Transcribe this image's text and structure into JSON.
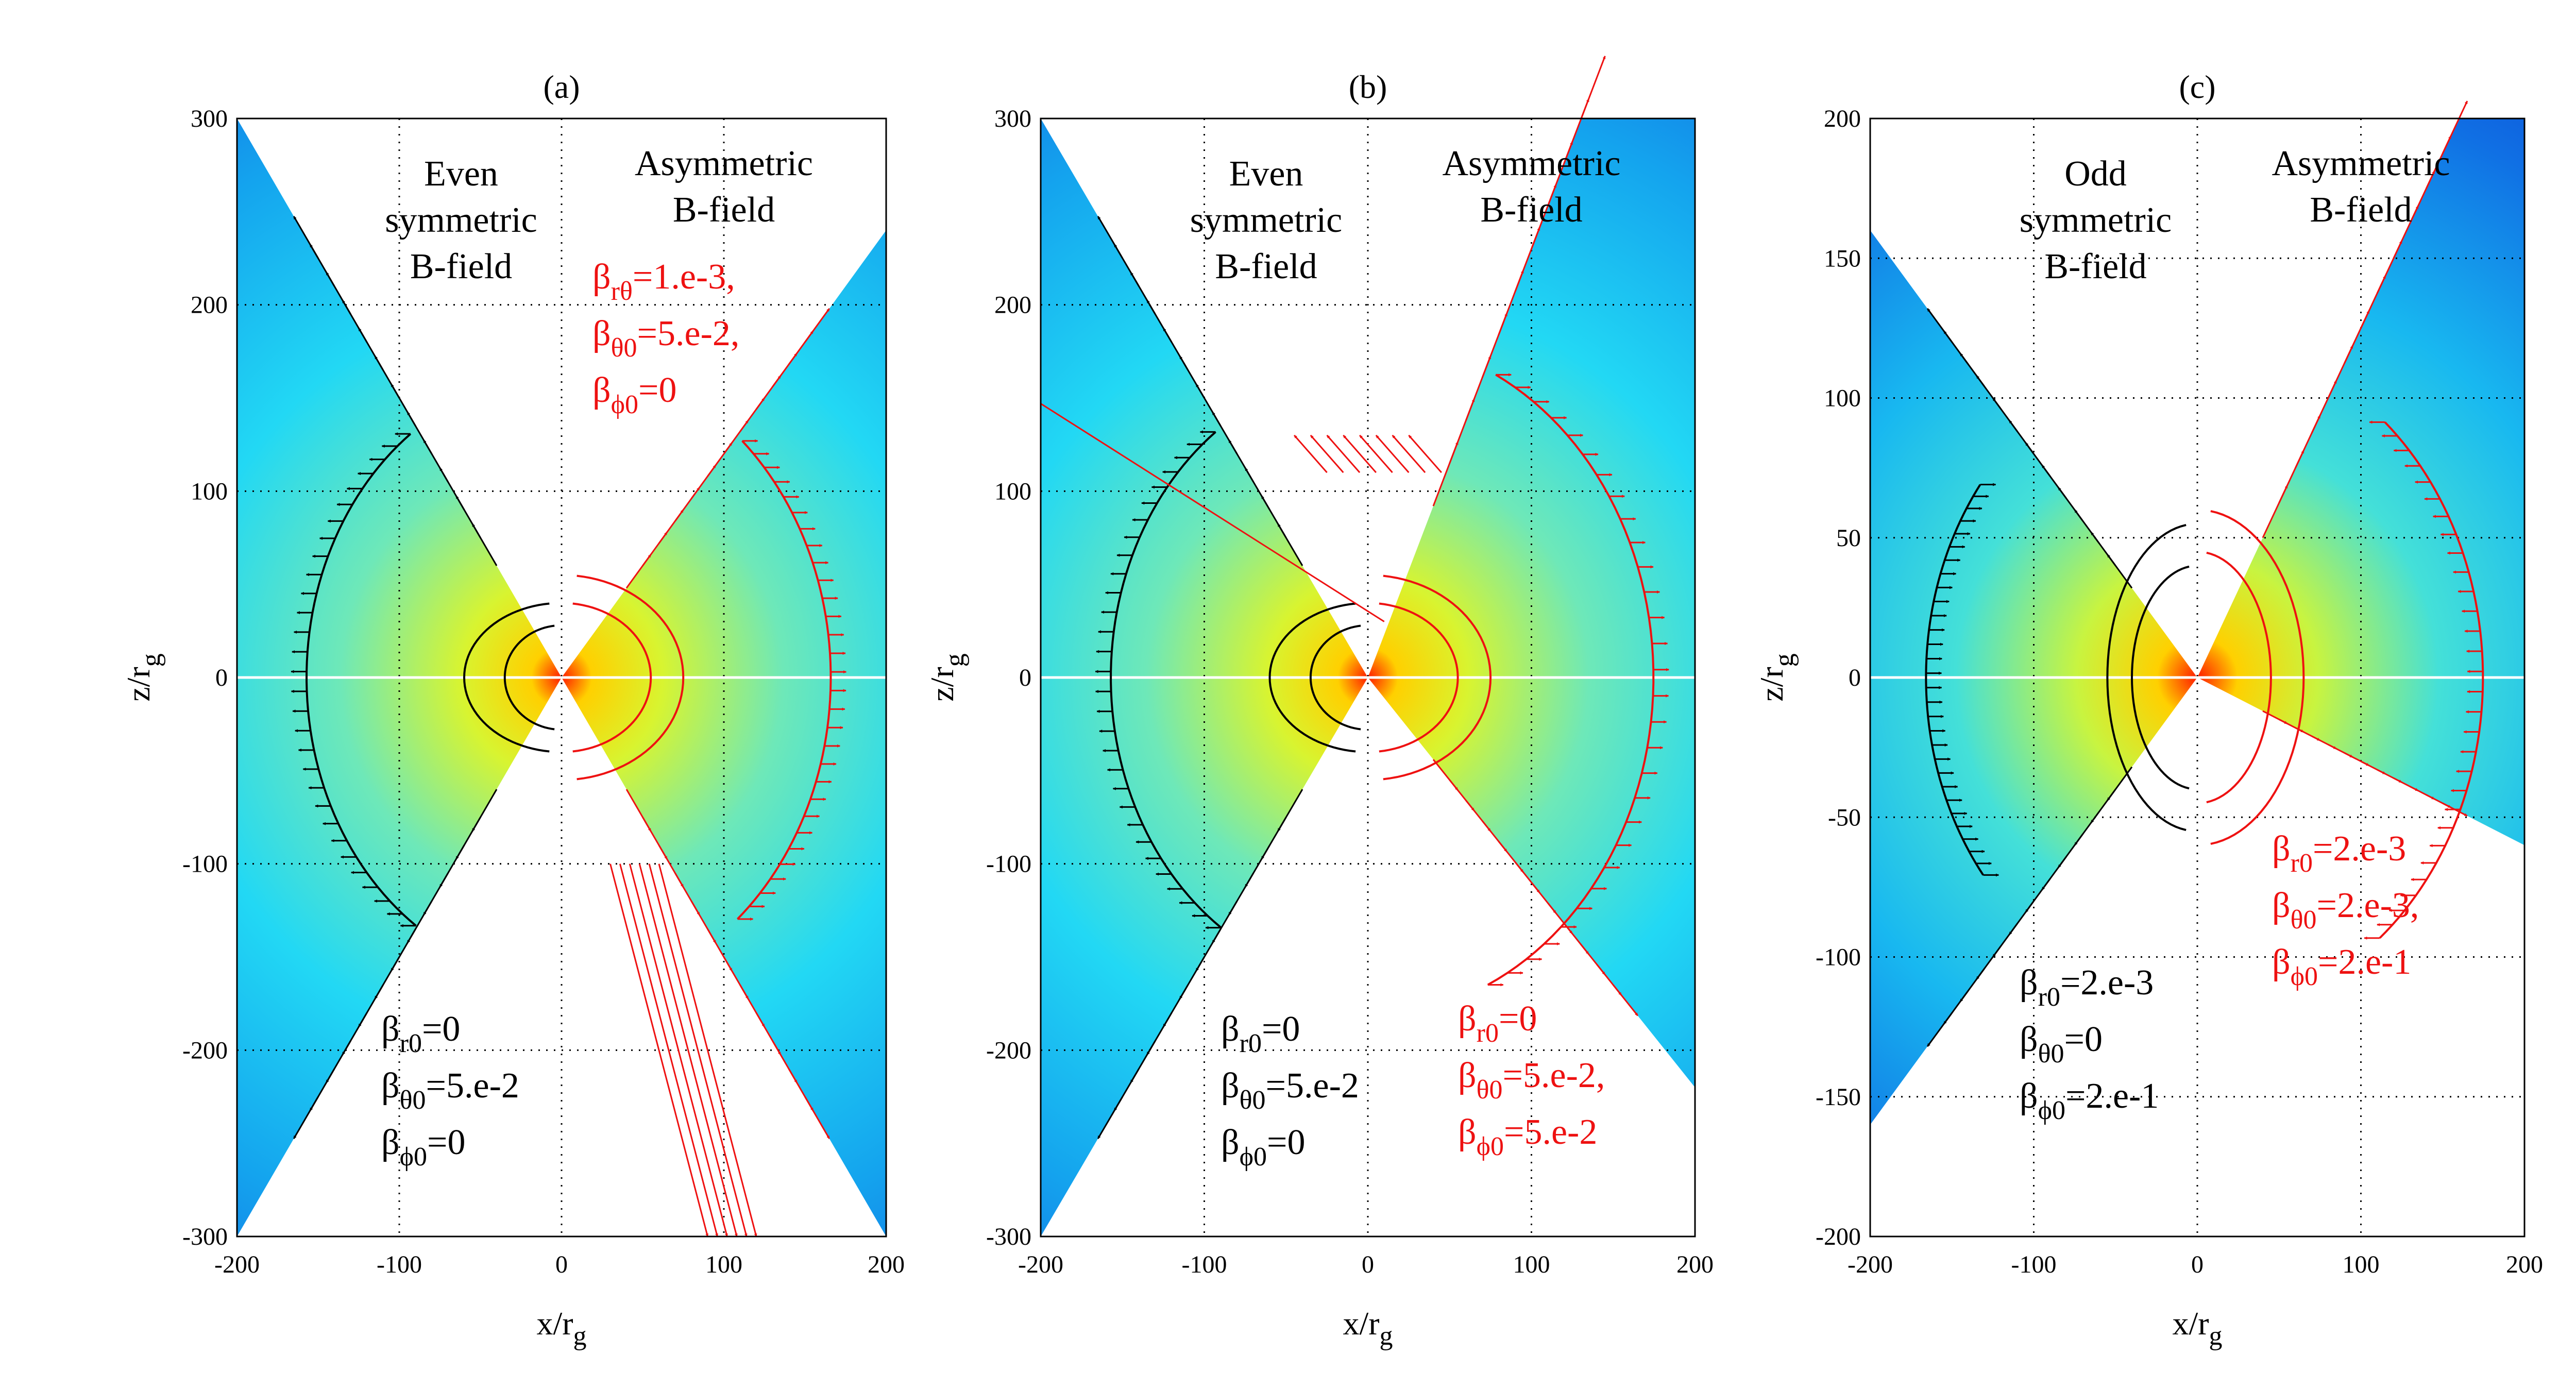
{
  "figure": {
    "colors": {
      "left_field": "#000000",
      "right_field": "#ee1111",
      "outer_blue": "#1030d8",
      "mid_cyan": "#22d8f4",
      "inner_yellow": "#ffd800",
      "center_red": "#ff2000"
    }
  },
  "chart_data": [
    {
      "type": "heatmap",
      "panel_label": "(a)",
      "xlabel": "x/r",
      "xlabel_sub": "g",
      "ylabel": "z/r",
      "ylabel_sub": "g",
      "xlim": [
        -200,
        200
      ],
      "ylim": [
        -300,
        300
      ],
      "xticks": [
        "-200",
        "-100",
        "0",
        "100",
        "200"
      ],
      "xtick_values": [
        -200,
        -100,
        0,
        100,
        200
      ],
      "yticks": [
        "300",
        "200",
        "100",
        "0",
        "-100",
        "-200",
        "-300"
      ],
      "ytick_values": [
        300,
        200,
        100,
        0,
        -100,
        -200,
        -300
      ],
      "grid": true,
      "left_title": [
        "Even",
        "symmetric",
        "B-field"
      ],
      "right_title": [
        "Asymmetric",
        "B-field"
      ],
      "left_params": [
        {
          "base": "β",
          "sub": "r0",
          "value": "=0"
        },
        {
          "base": "β",
          "sub": "θ0",
          "value": "=5.e-2"
        },
        {
          "base": "β",
          "sub": "ϕ0",
          "value": "=0"
        }
      ],
      "right_params": [
        {
          "base": "β",
          "sub": "rθ",
          "value": "=1.e-3,"
        },
        {
          "base": "β",
          "sub": "θ0",
          "value": "=5.e-2,"
        },
        {
          "base": "β",
          "sub": "ϕ0",
          "value": "=0"
        }
      ]
    },
    {
      "type": "heatmap",
      "panel_label": "(b)",
      "xlabel": "x/r",
      "xlabel_sub": "g",
      "ylabel": "z/r",
      "ylabel_sub": "g",
      "xlim": [
        -200,
        200
      ],
      "ylim": [
        -300,
        300
      ],
      "xticks": [
        "-200",
        "-100",
        "0",
        "100",
        "200"
      ],
      "xtick_values": [
        -200,
        -100,
        0,
        100,
        200
      ],
      "yticks": [
        "300",
        "200",
        "100",
        "0",
        "-100",
        "-200",
        "-300"
      ],
      "ytick_values": [
        300,
        200,
        100,
        0,
        -100,
        -200,
        -300
      ],
      "grid": true,
      "left_title": [
        "Even",
        "symmetric",
        "B-field"
      ],
      "right_title": [
        "Asymmetric",
        "B-field"
      ],
      "left_params": [
        {
          "base": "β",
          "sub": "r0",
          "value": "=0"
        },
        {
          "base": "β",
          "sub": "θ0",
          "value": "=5.e-2"
        },
        {
          "base": "β",
          "sub": "ϕ0",
          "value": "=0"
        }
      ],
      "right_params": [
        {
          "base": "β",
          "sub": "r0",
          "value": "=0"
        },
        {
          "base": "β",
          "sub": "θ0",
          "value": "=5.e-2,"
        },
        {
          "base": "β",
          "sub": "ϕ0",
          "value": "=5.e-2"
        }
      ]
    },
    {
      "type": "heatmap",
      "panel_label": "(c)",
      "xlabel": "x/r",
      "xlabel_sub": "g",
      "ylabel": "z/r",
      "ylabel_sub": "g",
      "xlim": [
        -200,
        200
      ],
      "ylim": [
        -200,
        200
      ],
      "xticks": [
        "-200",
        "-100",
        "0",
        "100",
        "200"
      ],
      "xtick_values": [
        -200,
        -100,
        0,
        100,
        200
      ],
      "yticks": [
        "200",
        "150",
        "100",
        "50",
        "0",
        "-50",
        "-100",
        "-150",
        "-200"
      ],
      "ytick_values": [
        200,
        150,
        100,
        50,
        0,
        -50,
        -100,
        -150,
        -200
      ],
      "grid": true,
      "left_title": [
        "Odd",
        "symmetric",
        "B-field"
      ],
      "right_title": [
        "Asymmetric",
        "B-field"
      ],
      "left_params": [
        {
          "base": "β",
          "sub": "r0",
          "value": "=2.e-3"
        },
        {
          "base": "β",
          "sub": "θ0",
          "value": "=0"
        },
        {
          "base": "β",
          "sub": "ϕ0",
          "value": "=2.e-1"
        }
      ],
      "right_params": [
        {
          "base": "β",
          "sub": "r0",
          "value": "=2.e-3"
        },
        {
          "base": "β",
          "sub": "θ0",
          "value": "=2.e-3,"
        },
        {
          "base": "β",
          "sub": "ϕ0",
          "value": "=2.e-1"
        }
      ]
    }
  ]
}
